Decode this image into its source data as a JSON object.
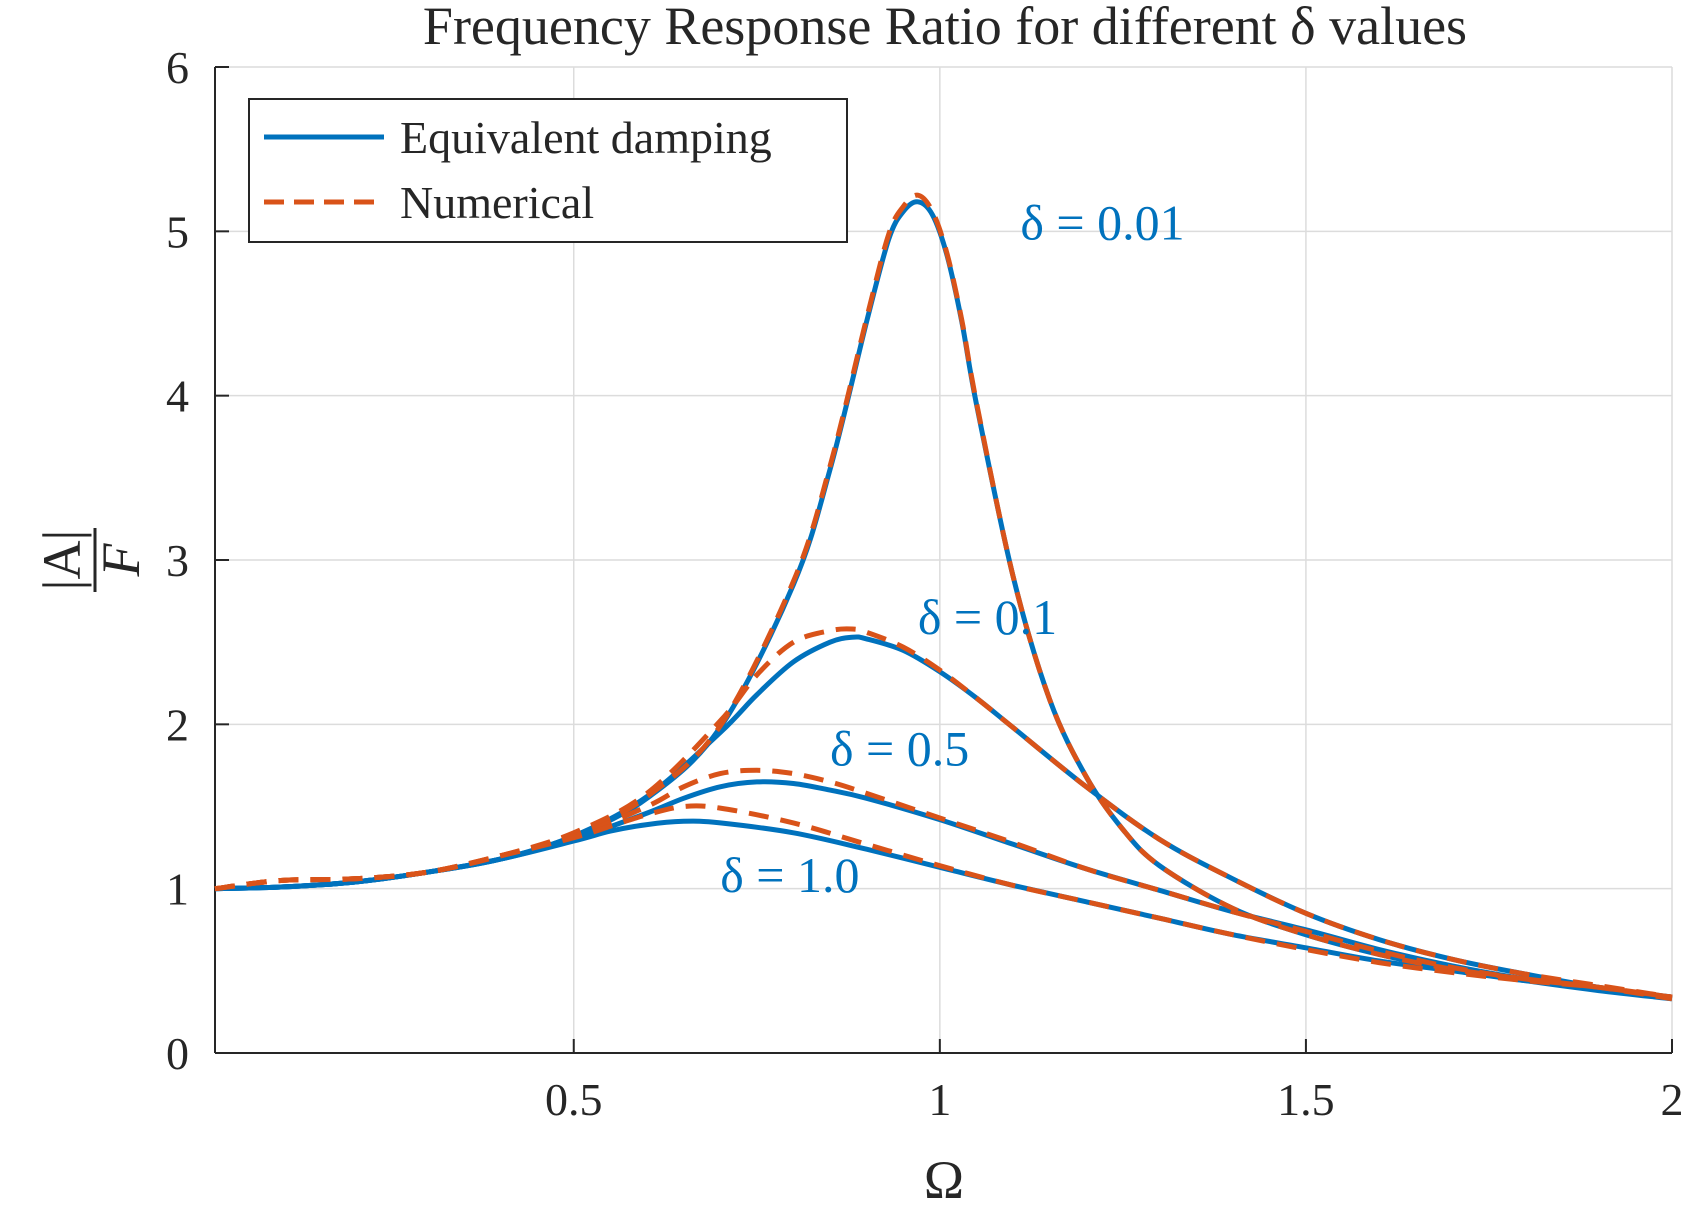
{
  "chart_data": {
    "type": "line",
    "title": "Frequency Response Ratio for different δ values",
    "xlabel": "Ω",
    "ylabel_numerator": "|A|",
    "ylabel_denominator": "F",
    "xlim": [
      0.01,
      2
    ],
    "ylim": [
      0,
      6
    ],
    "grid": true,
    "legend_position": "top-left",
    "x_ticks": [
      0.5,
      1,
      1.5,
      2
    ],
    "x_tick_labels": [
      "0.5",
      "1",
      "1.5",
      "2"
    ],
    "y_ticks": [
      0,
      1,
      2,
      3,
      4,
      5,
      6
    ],
    "y_tick_labels": [
      "0",
      "1",
      "2",
      "3",
      "4",
      "5",
      "6"
    ],
    "colors": {
      "equivalent": "#0072bd",
      "numerical": "#d95319"
    },
    "legend": [
      {
        "label": "Equivalent damping",
        "style": "solid",
        "color": "#0072bd"
      },
      {
        "label": "Numerical",
        "style": "dashed",
        "color": "#d95319"
      }
    ],
    "annotations": [
      {
        "text": "δ = 0.01",
        "x": 1.11,
        "y": 4.95
      },
      {
        "text": "δ = 0.1",
        "x": 0.97,
        "y": 2.55
      },
      {
        "text": "δ = 0.5",
        "x": 0.85,
        "y": 1.75
      },
      {
        "text": "δ = 1.0",
        "x": 0.7,
        "y": 0.98
      }
    ],
    "series": [
      {
        "delta": "0.01",
        "kind": "equivalent",
        "x": [
          0.01,
          0.1,
          0.2,
          0.3,
          0.4,
          0.5,
          0.6,
          0.7,
          0.8,
          0.85,
          0.9,
          0.93,
          0.95,
          0.97,
          0.99,
          1.01,
          1.03,
          1.05,
          1.1,
          1.15,
          1.2,
          1.25,
          1.3,
          1.4,
          1.5,
          1.6,
          1.7,
          1.8,
          1.9,
          2.0
        ],
        "y": [
          1.0,
          1.01,
          1.04,
          1.1,
          1.18,
          1.32,
          1.55,
          1.98,
          2.85,
          3.55,
          4.45,
          4.95,
          5.12,
          5.18,
          5.1,
          4.85,
          4.45,
          3.95,
          2.9,
          2.15,
          1.68,
          1.36,
          1.14,
          0.88,
          0.72,
          0.6,
          0.51,
          0.44,
          0.38,
          0.33
        ]
      },
      {
        "delta": "0.01",
        "kind": "numerical",
        "x": [
          0.01,
          0.1,
          0.2,
          0.3,
          0.4,
          0.5,
          0.6,
          0.7,
          0.8,
          0.85,
          0.9,
          0.93,
          0.95,
          0.97,
          0.99,
          1.01,
          1.03,
          1.05,
          1.1,
          1.15,
          1.2,
          1.25,
          1.3,
          1.4,
          1.5,
          1.6,
          1.7,
          1.8,
          1.9,
          2.0
        ],
        "y": [
          1.0,
          1.05,
          1.06,
          1.1,
          1.2,
          1.33,
          1.56,
          1.99,
          2.87,
          3.57,
          4.47,
          4.98,
          5.15,
          5.22,
          5.12,
          4.86,
          4.46,
          3.96,
          2.9,
          2.15,
          1.68,
          1.36,
          1.14,
          0.88,
          0.72,
          0.6,
          0.51,
          0.45,
          0.4,
          0.33
        ]
      },
      {
        "delta": "0.1",
        "kind": "equivalent",
        "x": [
          0.01,
          0.1,
          0.2,
          0.3,
          0.4,
          0.5,
          0.6,
          0.7,
          0.75,
          0.8,
          0.85,
          0.88,
          0.9,
          0.95,
          1.0,
          1.05,
          1.1,
          1.2,
          1.3,
          1.4,
          1.5,
          1.6,
          1.7,
          1.8,
          1.9,
          2.0
        ],
        "y": [
          1.0,
          1.01,
          1.04,
          1.1,
          1.18,
          1.32,
          1.56,
          1.95,
          2.18,
          2.38,
          2.5,
          2.53,
          2.52,
          2.45,
          2.32,
          2.16,
          1.98,
          1.62,
          1.3,
          1.06,
          0.85,
          0.69,
          0.57,
          0.48,
          0.4,
          0.34
        ]
      },
      {
        "delta": "0.1",
        "kind": "numerical",
        "x": [
          0.01,
          0.1,
          0.2,
          0.3,
          0.4,
          0.5,
          0.6,
          0.7,
          0.75,
          0.8,
          0.85,
          0.88,
          0.9,
          0.95,
          1.0,
          1.05,
          1.1,
          1.2,
          1.3,
          1.4,
          1.5,
          1.6,
          1.7,
          1.8,
          1.9,
          2.0
        ],
        "y": [
          1.0,
          1.05,
          1.06,
          1.1,
          1.2,
          1.34,
          1.58,
          2.02,
          2.3,
          2.5,
          2.57,
          2.58,
          2.56,
          2.47,
          2.33,
          2.16,
          1.98,
          1.62,
          1.3,
          1.06,
          0.85,
          0.69,
          0.57,
          0.48,
          0.41,
          0.34
        ]
      },
      {
        "delta": "0.5",
        "kind": "equivalent",
        "x": [
          0.01,
          0.1,
          0.2,
          0.3,
          0.4,
          0.5,
          0.6,
          0.65,
          0.7,
          0.75,
          0.8,
          0.85,
          0.9,
          1.0,
          1.1,
          1.2,
          1.3,
          1.4,
          1.5,
          1.6,
          1.7,
          1.8,
          1.9,
          2.0
        ],
        "y": [
          1.0,
          1.01,
          1.04,
          1.1,
          1.18,
          1.3,
          1.46,
          1.55,
          1.62,
          1.65,
          1.64,
          1.6,
          1.55,
          1.42,
          1.27,
          1.12,
          0.99,
          0.86,
          0.75,
          0.63,
          0.53,
          0.45,
          0.39,
          0.34
        ]
      },
      {
        "delta": "0.5",
        "kind": "numerical",
        "x": [
          0.01,
          0.1,
          0.2,
          0.3,
          0.4,
          0.5,
          0.6,
          0.65,
          0.7,
          0.75,
          0.8,
          0.85,
          0.9,
          1.0,
          1.1,
          1.2,
          1.3,
          1.4,
          1.5,
          1.6,
          1.7,
          1.8,
          1.9,
          2.0
        ],
        "y": [
          1.0,
          1.05,
          1.06,
          1.1,
          1.2,
          1.32,
          1.5,
          1.62,
          1.7,
          1.72,
          1.7,
          1.65,
          1.58,
          1.43,
          1.28,
          1.12,
          0.99,
          0.86,
          0.74,
          0.62,
          0.52,
          0.45,
          0.4,
          0.34
        ]
      },
      {
        "delta": "1.0",
        "kind": "equivalent",
        "x": [
          0.01,
          0.1,
          0.2,
          0.3,
          0.4,
          0.5,
          0.55,
          0.6,
          0.65,
          0.7,
          0.8,
          0.9,
          1.0,
          1.1,
          1.2,
          1.3,
          1.4,
          1.5,
          1.6,
          1.7,
          1.8,
          1.9,
          2.0
        ],
        "y": [
          1.0,
          1.01,
          1.04,
          1.1,
          1.18,
          1.29,
          1.35,
          1.39,
          1.41,
          1.4,
          1.34,
          1.24,
          1.13,
          1.02,
          0.92,
          0.82,
          0.72,
          0.64,
          0.56,
          0.5,
          0.44,
          0.39,
          0.34
        ]
      },
      {
        "delta": "1.0",
        "kind": "numerical",
        "x": [
          0.01,
          0.1,
          0.2,
          0.3,
          0.4,
          0.5,
          0.55,
          0.6,
          0.65,
          0.7,
          0.8,
          0.9,
          1.0,
          1.1,
          1.2,
          1.3,
          1.4,
          1.5,
          1.6,
          1.7,
          1.8,
          1.9,
          2.0
        ],
        "y": [
          1.0,
          1.05,
          1.06,
          1.1,
          1.2,
          1.31,
          1.38,
          1.45,
          1.5,
          1.49,
          1.4,
          1.27,
          1.14,
          1.02,
          0.92,
          0.82,
          0.72,
          0.63,
          0.55,
          0.49,
          0.44,
          0.4,
          0.34
        ]
      }
    ]
  }
}
